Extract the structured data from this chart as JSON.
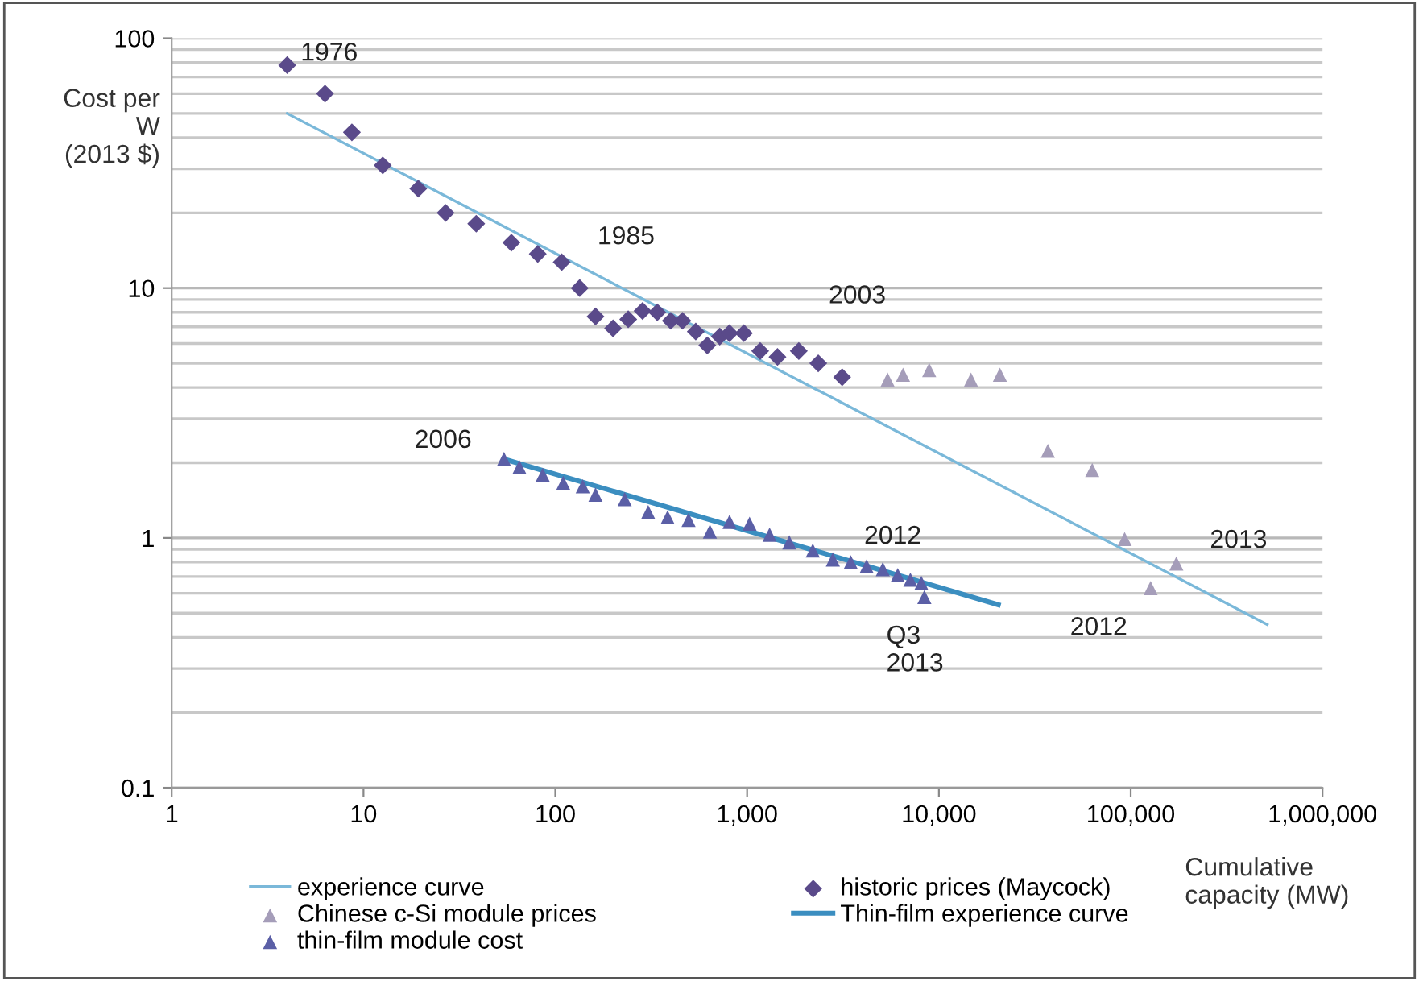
{
  "chart_data": {
    "type": "scatter",
    "ylabel": "Cost per\nW\n(2013 $)",
    "xlabel": "Cumulative\ncapacity (MW)",
    "log": "xy",
    "grid": "y",
    "legend": "bottom",
    "xlim": [
      1,
      1000000
    ],
    "xticks": [
      1,
      10,
      100,
      {
        "value": 1000,
        "label": "1,000"
      },
      {
        "value": 10000,
        "label": "10,000"
      },
      {
        "value": 100000,
        "label": "100,000"
      },
      {
        "value": 1000000,
        "label": "1,000,000"
      }
    ],
    "ylim": [
      0.1,
      100
    ],
    "yticks": [
      0.1,
      1,
      10,
      100
    ],
    "series": [
      {
        "name": "experience curve",
        "type": "line",
        "color": "#7ab8d9",
        "x": [
          4.0,
          515000
        ],
        "values": [
          50,
          0.45
        ]
      },
      {
        "name": "Chinese c-Si module prices",
        "marker": "triangle",
        "color": "#a59db9",
        "x": [
          5400,
          6500,
          8900,
          14700,
          20800,
          37000,
          63000,
          93000,
          127000,
          173000
        ],
        "values": [
          4.3,
          4.5,
          4.7,
          4.3,
          4.5,
          2.23,
          1.87,
          0.99,
          0.63,
          0.79
        ]
      },
      {
        "name": "thin-film module cost",
        "marker": "triangle",
        "color": "#5b5fa6",
        "x": [
          54,
          65,
          86,
          110,
          139,
          162,
          230,
          305,
          385,
          495,
          640,
          810,
          1030,
          1310,
          1660,
          2200,
          2800,
          3470,
          4200,
          5100,
          6100,
          7100,
          8100,
          8400
        ],
        "values": [
          2.07,
          1.92,
          1.79,
          1.66,
          1.61,
          1.49,
          1.43,
          1.27,
          1.21,
          1.18,
          1.06,
          1.16,
          1.14,
          1.03,
          0.96,
          0.89,
          0.82,
          0.8,
          0.77,
          0.75,
          0.71,
          0.68,
          0.66,
          0.58
        ]
      },
      {
        "name": "historic prices (Maycock)",
        "marker": "diamond",
        "color": "#5a4a8a",
        "x": [
          4.0,
          6.3,
          8.7,
          12.6,
          19.3,
          26.8,
          38.7,
          59,
          81,
          108,
          134,
          162,
          200,
          240,
          285,
          340,
          400,
          460,
          540,
          620,
          720,
          809,
          962,
          1170,
          1440,
          1860,
          2350,
          3130
        ],
        "values": [
          78,
          60,
          42,
          31,
          25,
          20,
          18.1,
          15.2,
          13.7,
          12.7,
          10,
          7.7,
          6.9,
          7.5,
          8.1,
          8.0,
          7.4,
          7.4,
          6.7,
          5.9,
          6.4,
          6.6,
          6.6,
          5.6,
          5.3,
          5.6,
          5.0,
          4.4
        ]
      },
      {
        "name": "Thin-film experience curve",
        "type": "line",
        "color": "#3b8ec0",
        "x": [
          54,
          20400
        ],
        "values": [
          2.07,
          0.54
        ]
      }
    ],
    "annotations": [
      {
        "text": "1976",
        "x": 4.0,
        "y": 78
      },
      {
        "text": "1985",
        "x": 108,
        "y": 12.7
      },
      {
        "text": "2003",
        "x": 3130,
        "y": 4.4
      },
      {
        "text": "2006",
        "x": 54,
        "y": 2.07
      },
      {
        "text": "2012",
        "x": 6100,
        "y": 0.71
      },
      {
        "text": "Q3\n2013",
        "x": 8400,
        "y": 0.58
      },
      {
        "text": "2012",
        "x": 127000,
        "y": 0.63
      },
      {
        "text": "2013",
        "x": 173000,
        "y": 0.79
      }
    ]
  }
}
